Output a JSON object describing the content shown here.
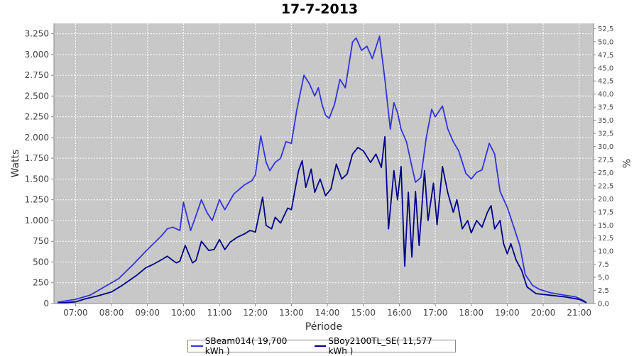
{
  "chart_data": {
    "type": "line",
    "title": "17-7-2013",
    "xlabel": "Période",
    "ylabel": "Watts",
    "y2label": "%",
    "xlim": [
      6.4,
      21.4
    ],
    "ylim": [
      0,
      3375
    ],
    "y2lim": [
      0,
      53.5
    ],
    "x_ticks": [
      7,
      8,
      9,
      10,
      11,
      12,
      13,
      14,
      15,
      16,
      17,
      18,
      19,
      20,
      21
    ],
    "x_tick_labels": [
      "07:00",
      "08:00",
      "09:00",
      "10:00",
      "11:00",
      "12:00",
      "13:00",
      "14:00",
      "15:00",
      "16:00",
      "17:00",
      "18:00",
      "19:00",
      "20:00",
      "21:00"
    ],
    "y_ticks": [
      0,
      250,
      500,
      750,
      1000,
      1250,
      1500,
      1750,
      2000,
      2250,
      2500,
      2750,
      3000,
      3250
    ],
    "y_tick_labels": [
      "0",
      "250",
      "500",
      "750",
      "1.000",
      "1.250",
      "1.500",
      "1.750",
      "2.000",
      "2.250",
      "2.500",
      "2.750",
      "3.000",
      "3.250"
    ],
    "y2_ticks": [
      0,
      2.5,
      5,
      7.5,
      10,
      12.5,
      15,
      17.5,
      20,
      22.5,
      25,
      27.5,
      30,
      32.5,
      35,
      37.5,
      40,
      42.5,
      45,
      47.5,
      50,
      52.5
    ],
    "y2_tick_labels": [
      "0,0",
      "2,5",
      "5,0",
      "7,5",
      "10,0",
      "12,5",
      "15,0",
      "17,5",
      "20,0",
      "22,5",
      "25,0",
      "27,5",
      "30,0",
      "32,5",
      "35,0",
      "37,5",
      "40,0",
      "42,5",
      "45,0",
      "47,5",
      "50,0",
      "52,5"
    ],
    "grid": true,
    "legend_position": "bottom",
    "colors": {
      "plot_bg": "#c8c8c8",
      "grid": "#ffffff"
    },
    "series": [
      {
        "name": "SBeam014( 19,700 kWh )",
        "color": "#3333dd",
        "points": [
          [
            6.5,
            15
          ],
          [
            7.0,
            50
          ],
          [
            7.4,
            100
          ],
          [
            7.8,
            200
          ],
          [
            8.2,
            300
          ],
          [
            8.6,
            470
          ],
          [
            9.0,
            650
          ],
          [
            9.4,
            820
          ],
          [
            9.55,
            900
          ],
          [
            9.7,
            920
          ],
          [
            9.9,
            880
          ],
          [
            10.0,
            1220
          ],
          [
            10.2,
            880
          ],
          [
            10.3,
            1000
          ],
          [
            10.5,
            1250
          ],
          [
            10.65,
            1100
          ],
          [
            10.8,
            1000
          ],
          [
            11.0,
            1250
          ],
          [
            11.15,
            1130
          ],
          [
            11.4,
            1320
          ],
          [
            11.7,
            1430
          ],
          [
            11.9,
            1480
          ],
          [
            12.0,
            1550
          ],
          [
            12.15,
            2020
          ],
          [
            12.3,
            1700
          ],
          [
            12.4,
            1600
          ],
          [
            12.55,
            1700
          ],
          [
            12.7,
            1750
          ],
          [
            12.85,
            1950
          ],
          [
            13.0,
            1930
          ],
          [
            13.15,
            2330
          ],
          [
            13.35,
            2750
          ],
          [
            13.5,
            2650
          ],
          [
            13.65,
            2500
          ],
          [
            13.75,
            2600
          ],
          [
            13.85,
            2400
          ],
          [
            13.95,
            2270
          ],
          [
            14.05,
            2230
          ],
          [
            14.2,
            2400
          ],
          [
            14.35,
            2700
          ],
          [
            14.5,
            2600
          ],
          [
            14.7,
            3150
          ],
          [
            14.8,
            3200
          ],
          [
            14.95,
            3050
          ],
          [
            15.1,
            3100
          ],
          [
            15.25,
            2950
          ],
          [
            15.45,
            3220
          ],
          [
            15.6,
            2700
          ],
          [
            15.75,
            2100
          ],
          [
            15.85,
            2420
          ],
          [
            15.95,
            2300
          ],
          [
            16.05,
            2100
          ],
          [
            16.2,
            1950
          ],
          [
            16.35,
            1650
          ],
          [
            16.45,
            1460
          ],
          [
            16.6,
            1520
          ],
          [
            16.75,
            2000
          ],
          [
            16.9,
            2340
          ],
          [
            17.0,
            2250
          ],
          [
            17.2,
            2380
          ],
          [
            17.35,
            2100
          ],
          [
            17.5,
            1950
          ],
          [
            17.65,
            1840
          ],
          [
            17.85,
            1570
          ],
          [
            18.0,
            1500
          ],
          [
            18.15,
            1580
          ],
          [
            18.3,
            1610
          ],
          [
            18.5,
            1930
          ],
          [
            18.65,
            1800
          ],
          [
            18.8,
            1350
          ],
          [
            19.0,
            1160
          ],
          [
            19.2,
            900
          ],
          [
            19.35,
            700
          ],
          [
            19.5,
            350
          ],
          [
            19.7,
            220
          ],
          [
            19.9,
            170
          ],
          [
            20.2,
            130
          ],
          [
            20.6,
            100
          ],
          [
            20.9,
            80
          ],
          [
            21.1,
            40
          ],
          [
            21.2,
            10
          ]
        ]
      },
      {
        "name": "SBoy2100TL_SE( 11,577 kWh )",
        "color": "#00008b",
        "points": [
          [
            6.5,
            5
          ],
          [
            7.0,
            20
          ],
          [
            7.3,
            60
          ],
          [
            7.6,
            90
          ],
          [
            8.0,
            140
          ],
          [
            8.3,
            220
          ],
          [
            8.7,
            340
          ],
          [
            8.95,
            430
          ],
          [
            9.15,
            470
          ],
          [
            9.4,
            530
          ],
          [
            9.55,
            570
          ],
          [
            9.7,
            520
          ],
          [
            9.8,
            490
          ],
          [
            9.9,
            510
          ],
          [
            10.05,
            700
          ],
          [
            10.25,
            490
          ],
          [
            10.35,
            520
          ],
          [
            10.5,
            750
          ],
          [
            10.7,
            640
          ],
          [
            10.85,
            650
          ],
          [
            11.0,
            770
          ],
          [
            11.15,
            650
          ],
          [
            11.3,
            740
          ],
          [
            11.5,
            800
          ],
          [
            11.7,
            840
          ],
          [
            11.85,
            880
          ],
          [
            12.0,
            860
          ],
          [
            12.2,
            1280
          ],
          [
            12.3,
            940
          ],
          [
            12.45,
            900
          ],
          [
            12.55,
            1040
          ],
          [
            12.7,
            970
          ],
          [
            12.9,
            1150
          ],
          [
            13.0,
            1130
          ],
          [
            13.2,
            1600
          ],
          [
            13.3,
            1720
          ],
          [
            13.4,
            1400
          ],
          [
            13.55,
            1620
          ],
          [
            13.65,
            1340
          ],
          [
            13.8,
            1500
          ],
          [
            13.95,
            1300
          ],
          [
            14.1,
            1380
          ],
          [
            14.25,
            1680
          ],
          [
            14.4,
            1500
          ],
          [
            14.55,
            1560
          ],
          [
            14.7,
            1800
          ],
          [
            14.85,
            1880
          ],
          [
            15.0,
            1840
          ],
          [
            15.2,
            1700
          ],
          [
            15.35,
            1800
          ],
          [
            15.5,
            1640
          ],
          [
            15.6,
            2010
          ],
          [
            15.7,
            900
          ],
          [
            15.85,
            1600
          ],
          [
            15.95,
            1250
          ],
          [
            16.05,
            1650
          ],
          [
            16.15,
            450
          ],
          [
            16.25,
            1340
          ],
          [
            16.35,
            560
          ],
          [
            16.45,
            1350
          ],
          [
            16.55,
            700
          ],
          [
            16.7,
            1600
          ],
          [
            16.8,
            1000
          ],
          [
            16.95,
            1450
          ],
          [
            17.05,
            950
          ],
          [
            17.2,
            1650
          ],
          [
            17.35,
            1330
          ],
          [
            17.5,
            1100
          ],
          [
            17.6,
            1250
          ],
          [
            17.75,
            900
          ],
          [
            17.9,
            1000
          ],
          [
            18.0,
            850
          ],
          [
            18.15,
            1000
          ],
          [
            18.3,
            920
          ],
          [
            18.45,
            1100
          ],
          [
            18.55,
            1180
          ],
          [
            18.65,
            900
          ],
          [
            18.8,
            1000
          ],
          [
            18.9,
            720
          ],
          [
            19.0,
            600
          ],
          [
            19.1,
            720
          ],
          [
            19.25,
            520
          ],
          [
            19.4,
            400
          ],
          [
            19.55,
            200
          ],
          [
            19.8,
            120
          ],
          [
            20.2,
            100
          ],
          [
            20.6,
            80
          ],
          [
            21.0,
            50
          ],
          [
            21.2,
            10
          ]
        ]
      }
    ]
  }
}
